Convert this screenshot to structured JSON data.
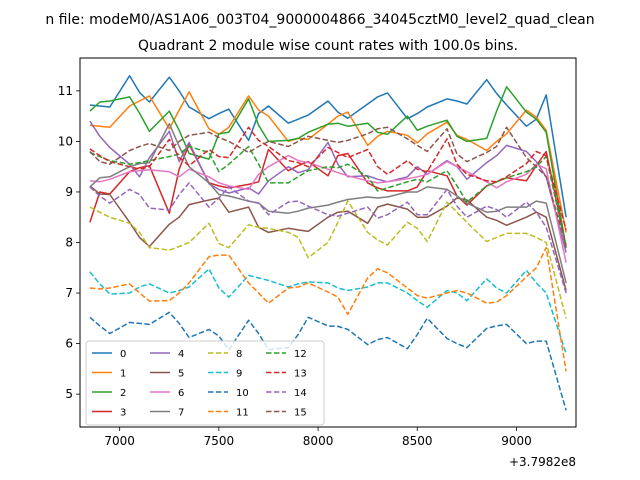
{
  "window_title": "n file: modeM0/AS1A06_003T04_9000004866_34045cztM0_level2_quad_clean",
  "chart_data": {
    "type": "line",
    "title": "Quadrant 2 module wise count rates with 100.0s bins.",
    "xlabel": "",
    "ylabel": "",
    "x_offset_label": "+3.7982e8",
    "xlim": [
      6800,
      9300
    ],
    "ylim": [
      4.35,
      11.65
    ],
    "xticks": [
      7000,
      7500,
      8000,
      8500,
      9000
    ],
    "yticks": [
      5,
      6,
      7,
      8,
      9,
      10,
      11
    ],
    "x": [
      6850,
      6900,
      6950,
      7050,
      7100,
      7150,
      7250,
      7300,
      7350,
      7450,
      7500,
      7550,
      7650,
      7700,
      7750,
      7850,
      7900,
      7950,
      8050,
      8100,
      8150,
      8250,
      8300,
      8350,
      8450,
      8500,
      8550,
      8650,
      8700,
      8750,
      8850,
      8900,
      8950,
      9050,
      9100,
      9150,
      9250
    ],
    "series": [
      {
        "name": "0",
        "color": "#1f77b4",
        "dash": "solid",
        "values": [
          10.72,
          10.7,
          10.68,
          11.3,
          10.97,
          10.78,
          11.27,
          11.0,
          10.68,
          10.45,
          10.55,
          10.64,
          10.02,
          10.55,
          10.7,
          10.36,
          10.44,
          10.52,
          10.8,
          10.58,
          10.46,
          10.74,
          10.88,
          10.96,
          10.45,
          10.55,
          10.68,
          10.84,
          10.8,
          10.74,
          11.22,
          10.95,
          10.72,
          10.3,
          10.44,
          10.92,
          8.5
        ]
      },
      {
        "name": "1",
        "color": "#ff7f0e",
        "dash": "solid",
        "values": [
          10.32,
          10.3,
          10.28,
          10.7,
          10.8,
          10.9,
          10.25,
          10.62,
          10.98,
          10.25,
          10.14,
          10.28,
          10.9,
          10.62,
          10.5,
          10.0,
          10.06,
          10.04,
          10.34,
          10.5,
          10.58,
          9.92,
          10.1,
          10.2,
          10.12,
          9.97,
          10.15,
          10.38,
          10.12,
          10.04,
          9.82,
          10.0,
          10.15,
          10.62,
          10.48,
          10.22,
          8.2
        ]
      },
      {
        "name": "2",
        "color": "#2ca02c",
        "dash": "solid",
        "values": [
          10.6,
          10.78,
          10.8,
          10.88,
          10.56,
          10.2,
          10.6,
          10.22,
          9.76,
          9.65,
          10.15,
          10.18,
          10.84,
          10.32,
          10.0,
          10.02,
          10.06,
          10.18,
          10.34,
          10.36,
          10.3,
          10.36,
          10.18,
          10.14,
          10.5,
          10.22,
          10.3,
          10.42,
          10.1,
          10.0,
          10.06,
          10.6,
          11.08,
          10.58,
          10.44,
          10.18,
          7.9
        ]
      },
      {
        "name": "3",
        "color": "#d62728",
        "dash": "solid",
        "values": [
          8.4,
          9.0,
          8.96,
          9.4,
          9.48,
          9.52,
          8.58,
          9.45,
          9.94,
          9.18,
          9.12,
          9.08,
          9.15,
          9.2,
          9.84,
          9.42,
          9.52,
          9.6,
          9.32,
          9.72,
          9.76,
          9.18,
          9.08,
          9.02,
          9.02,
          9.1,
          9.42,
          9.32,
          8.92,
          8.74,
          9.12,
          9.2,
          9.28,
          9.22,
          9.52,
          9.8,
          7.9
        ]
      },
      {
        "name": "4",
        "color": "#9467bd",
        "dash": "solid",
        "values": [
          10.4,
          10.1,
          9.88,
          9.55,
          9.3,
          9.68,
          10.2,
          9.6,
          9.98,
          9.16,
          9.05,
          8.98,
          9.08,
          8.96,
          9.22,
          9.5,
          9.38,
          9.44,
          9.98,
          9.55,
          9.3,
          9.32,
          9.25,
          9.2,
          9.3,
          9.5,
          9.35,
          9.62,
          9.5,
          9.25,
          9.58,
          9.72,
          9.92,
          9.8,
          9.6,
          9.3,
          7.8
        ]
      },
      {
        "name": "5",
        "color": "#8c564b",
        "dash": "solid",
        "values": [
          9.12,
          8.96,
          8.95,
          8.4,
          8.1,
          7.92,
          8.36,
          8.5,
          8.75,
          8.84,
          8.88,
          8.6,
          8.7,
          8.3,
          8.2,
          8.28,
          8.25,
          8.22,
          8.5,
          8.6,
          8.62,
          8.38,
          8.7,
          8.76,
          8.66,
          8.5,
          8.5,
          8.72,
          8.88,
          8.84,
          8.5,
          8.44,
          8.34,
          8.5,
          8.6,
          8.5,
          7.05
        ]
      },
      {
        "name": "6",
        "color": "#e377c2",
        "dash": "solid",
        "values": [
          9.22,
          9.2,
          9.25,
          9.4,
          9.42,
          9.44,
          9.4,
          9.3,
          9.45,
          9.3,
          9.18,
          9.12,
          9.05,
          9.35,
          9.5,
          9.72,
          9.62,
          9.58,
          9.45,
          9.38,
          9.32,
          9.22,
          9.18,
          9.2,
          9.26,
          9.3,
          9.35,
          9.6,
          9.5,
          9.4,
          9.2,
          9.08,
          9.2,
          9.35,
          9.55,
          9.46,
          7.6
        ]
      },
      {
        "name": "7",
        "color": "#7f7f7f",
        "dash": "solid",
        "values": [
          9.1,
          9.28,
          9.3,
          9.5,
          9.56,
          9.58,
          10.35,
          9.9,
          9.5,
          9.18,
          8.95,
          8.92,
          8.82,
          8.78,
          8.62,
          8.58,
          8.62,
          8.68,
          8.74,
          8.8,
          8.85,
          8.9,
          8.88,
          8.9,
          9.0,
          9.0,
          9.1,
          9.05,
          8.92,
          8.78,
          8.6,
          8.62,
          8.7,
          8.7,
          8.82,
          8.78,
          7.2
        ]
      },
      {
        "name": "8",
        "color": "#bcbd22",
        "dash": "dashed",
        "values": [
          8.7,
          8.6,
          8.5,
          8.38,
          8.2,
          7.9,
          7.85,
          7.92,
          8.0,
          8.38,
          7.98,
          7.9,
          8.35,
          8.3,
          8.28,
          8.2,
          8.1,
          7.7,
          8.0,
          8.4,
          8.82,
          8.2,
          8.05,
          7.95,
          8.4,
          8.28,
          8.02,
          8.8,
          8.6,
          8.4,
          8.02,
          8.1,
          8.18,
          8.18,
          8.1,
          8.0,
          6.5
        ]
      },
      {
        "name": "9",
        "color": "#17becf",
        "dash": "dashed",
        "values": [
          7.42,
          7.18,
          6.98,
          7.0,
          7.12,
          7.18,
          7.0,
          7.05,
          7.12,
          7.48,
          7.1,
          6.92,
          7.35,
          7.3,
          7.25,
          7.12,
          7.18,
          7.22,
          7.2,
          7.1,
          7.05,
          7.12,
          7.2,
          7.2,
          7.0,
          6.85,
          6.72,
          7.05,
          7.0,
          6.85,
          7.28,
          7.1,
          7.0,
          7.45,
          7.2,
          7.0,
          5.8
        ]
      },
      {
        "name": "10",
        "color": "#1f77b4",
        "dash": "dashed",
        "values": [
          6.52,
          6.35,
          6.2,
          6.42,
          6.4,
          6.38,
          6.62,
          6.4,
          6.12,
          6.28,
          6.15,
          5.88,
          6.46,
          6.2,
          5.88,
          5.92,
          6.18,
          6.52,
          6.35,
          6.34,
          6.28,
          5.98,
          6.08,
          6.12,
          5.9,
          6.18,
          6.5,
          6.1,
          6.0,
          5.92,
          6.3,
          6.35,
          6.38,
          6.0,
          6.05,
          6.05,
          4.68
        ]
      },
      {
        "name": "11",
        "color": "#ff7f0e",
        "dash": "dashed",
        "values": [
          7.1,
          7.08,
          7.1,
          7.18,
          7.0,
          6.84,
          6.85,
          7.0,
          7.2,
          7.72,
          7.75,
          7.75,
          7.2,
          7.0,
          6.8,
          7.1,
          7.12,
          7.2,
          7.02,
          6.92,
          6.58,
          7.3,
          7.48,
          7.4,
          7.1,
          6.95,
          6.9,
          7.0,
          7.05,
          7.0,
          6.8,
          6.82,
          6.95,
          7.32,
          7.5,
          7.9,
          5.45
        ]
      },
      {
        "name": "12",
        "color": "#2ca02c",
        "dash": "dashed",
        "values": [
          9.78,
          9.7,
          9.62,
          9.55,
          9.58,
          9.62,
          9.7,
          9.75,
          9.9,
          9.78,
          9.4,
          9.55,
          9.9,
          9.55,
          9.18,
          9.18,
          9.3,
          9.42,
          9.5,
          9.48,
          9.55,
          9.3,
          9.02,
          9.08,
          9.2,
          9.25,
          9.2,
          9.42,
          9.12,
          8.8,
          9.12,
          9.2,
          9.28,
          9.4,
          9.5,
          9.7,
          7.9
        ]
      },
      {
        "name": "13",
        "color": "#d62728",
        "dash": "dashed",
        "values": [
          9.85,
          9.72,
          9.6,
          9.5,
          9.45,
          9.5,
          10.04,
          9.68,
          9.52,
          9.84,
          9.7,
          9.68,
          10.28,
          10.02,
          9.9,
          9.62,
          9.58,
          9.5,
          9.88,
          9.78,
          9.68,
          9.84,
          9.5,
          9.35,
          9.62,
          9.45,
          9.4,
          10.05,
          9.55,
          9.35,
          9.22,
          9.2,
          9.3,
          9.56,
          9.8,
          9.72,
          8.25
        ]
      },
      {
        "name": "14",
        "color": "#9467bd",
        "dash": "dashed",
        "values": [
          9.1,
          8.92,
          8.78,
          9.05,
          8.95,
          8.68,
          8.64,
          8.95,
          9.18,
          8.7,
          8.88,
          9.1,
          8.82,
          8.78,
          8.55,
          8.8,
          8.82,
          8.72,
          8.55,
          8.52,
          8.58,
          8.7,
          8.48,
          8.55,
          8.8,
          8.55,
          8.55,
          9.05,
          8.72,
          8.5,
          8.72,
          8.65,
          8.5,
          8.8,
          8.6,
          8.3,
          7.0
        ]
      },
      {
        "name": "15",
        "color": "#8c564b",
        "dash": "dashed",
        "values": [
          9.8,
          9.6,
          9.55,
          9.82,
          9.9,
          9.96,
          9.82,
          10.0,
          10.12,
          10.18,
          10.08,
          10.0,
          9.78,
          9.9,
          10.0,
          9.9,
          10.0,
          10.1,
          10.02,
          9.98,
          10.02,
          10.15,
          10.25,
          10.28,
          10.05,
          9.92,
          9.8,
          10.25,
          9.75,
          9.6,
          9.78,
          9.9,
          10.28,
          9.68,
          9.5,
          9.3,
          7.95
        ]
      }
    ],
    "legend": {
      "location": "lower-left",
      "columns": 4
    }
  }
}
